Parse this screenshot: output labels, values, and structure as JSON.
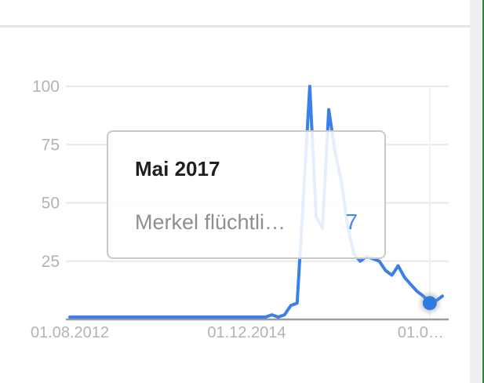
{
  "colors": {
    "line": "#3b80e8",
    "dot": "#2f7ce0",
    "halo": "#8a8a8a",
    "grid": "#e9e9e9",
    "selected_column_grid": "#f2f2f2",
    "axis": "#9b9b9b",
    "tick_label": "#b3b3b3",
    "value_text": "#4285f4",
    "divider": "#e3e3e3",
    "side_panel": "#efefef",
    "green_edge": "#1e8e3e",
    "tooltip_border": "#c9c9c9"
  },
  "tooltip": {
    "title": "Mai 2017",
    "term": "Merkel flüchtli…",
    "value": "7"
  },
  "chart_data": {
    "type": "line",
    "title": "",
    "xlabel": "",
    "ylabel": "",
    "x_start": "01.08.2012",
    "x_interval": "month",
    "series": [
      {
        "name": "Merkel flüchtli…",
        "values": [
          1,
          1,
          1,
          1,
          1,
          1,
          1,
          1,
          1,
          1,
          1,
          1,
          1,
          1,
          1,
          1,
          1,
          1,
          1,
          1,
          1,
          1,
          1,
          1,
          1,
          1,
          1,
          1,
          1,
          1,
          1,
          1,
          2,
          1,
          2,
          6,
          7,
          53,
          100,
          44,
          39,
          90,
          72,
          59,
          40,
          28,
          25,
          27,
          26,
          25,
          21,
          19,
          23,
          18,
          15,
          12,
          10,
          7,
          8,
          10
        ]
      }
    ],
    "xticks": [
      {
        "month_index": 0,
        "label": "01.08.2012",
        "anchor": "middle"
      },
      {
        "month_index": 28,
        "label": "01.12.2014",
        "anchor": "middle"
      },
      {
        "month_index": 57,
        "label": "01.0…",
        "anchor": "end"
      }
    ],
    "yticks": [
      100,
      75,
      50,
      25
    ],
    "ylim": [
      0,
      100
    ],
    "grid": true,
    "legend": false,
    "selected_point": {
      "month_index": 57,
      "date_label": "Mai 2017",
      "value": 7
    }
  }
}
